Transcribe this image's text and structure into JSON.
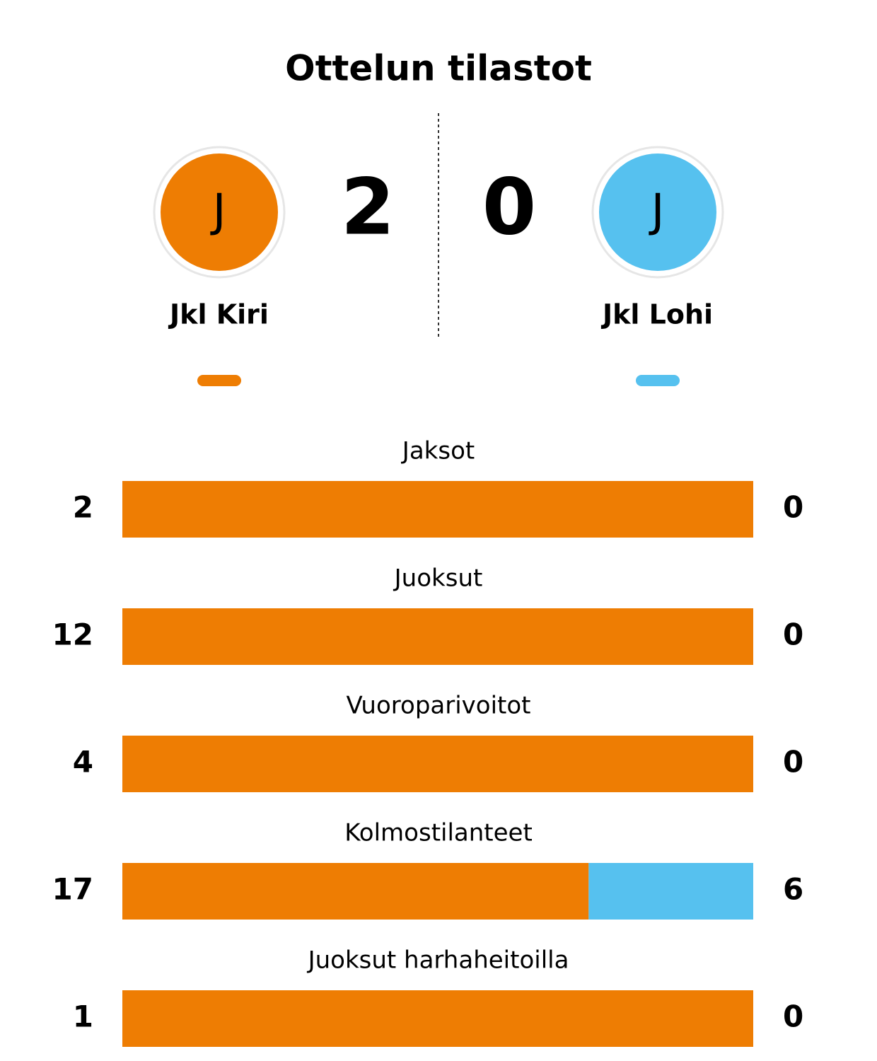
{
  "title": "Ottelun tilastot",
  "home": {
    "name": "Jkl Kiri",
    "initial": "J",
    "score": 2,
    "color": "#ee7d03"
  },
  "away": {
    "name": "Jkl Lohi",
    "initial": "J",
    "score": 0,
    "color": "#56c1ef"
  },
  "stats": [
    {
      "label": "Jaksot",
      "home": 2,
      "away": 0
    },
    {
      "label": "Juoksut",
      "home": 12,
      "away": 0
    },
    {
      "label": "Vuoroparivoitot",
      "home": 4,
      "away": 0
    },
    {
      "label": "Kolmostilanteet",
      "home": 17,
      "away": 6
    },
    {
      "label": "Juoksut harhaheitoilla",
      "home": 1,
      "away": 0
    }
  ]
}
